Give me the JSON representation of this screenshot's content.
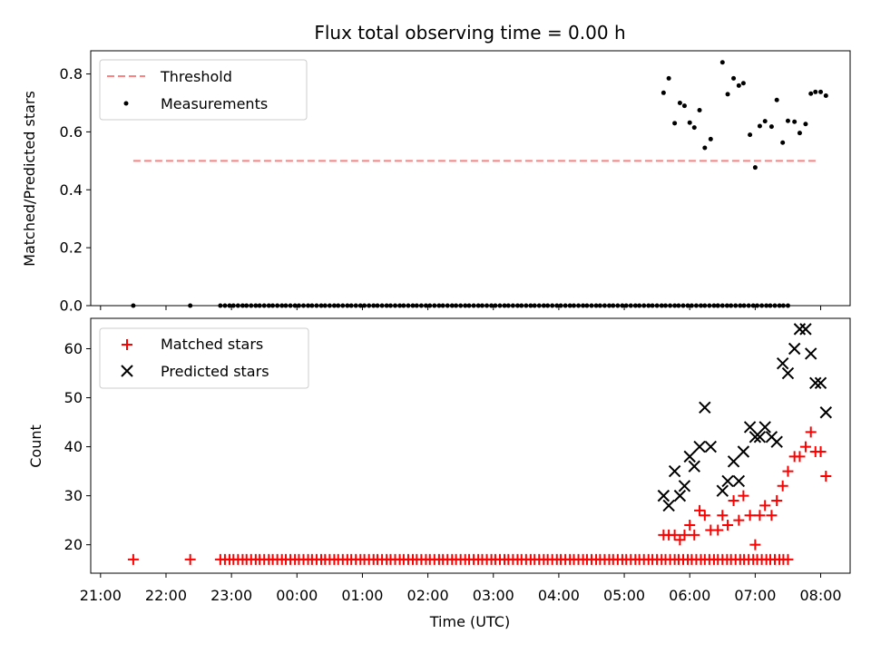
{
  "chart_data": [
    {
      "type": "scatter",
      "title": "Flux total observing time = 0.00 h",
      "xlabel": "",
      "ylabel": "Matched/Predicted stars",
      "ylim": [
        0,
        0.88
      ],
      "yticks": [
        "0.0",
        "0.2",
        "0.4",
        "0.6",
        "0.8"
      ],
      "ytick_values": [
        0,
        0.2,
        0.4,
        0.6,
        0.8
      ],
      "xlim": [
        -0.15,
        11.45
      ],
      "legend": {
        "placement": "top-left",
        "entries": [
          "Threshold",
          "Measurements"
        ]
      },
      "threshold": {
        "name": "Threshold",
        "value": 0.5,
        "x_start": 0.5,
        "x_end": 10.95,
        "color": "#ff8080"
      },
      "measurements_zero_x": [
        0.5,
        1.37,
        1.83,
        1.9,
        1.97,
        2.03,
        2.1,
        2.17,
        2.23,
        2.3,
        2.37,
        2.43,
        2.5,
        2.57,
        2.63,
        2.7,
        2.77,
        2.83,
        2.9,
        2.97,
        3.03,
        3.1,
        3.17,
        3.23,
        3.3,
        3.37,
        3.43,
        3.5,
        3.57,
        3.63,
        3.7,
        3.77,
        3.83,
        3.9,
        3.97,
        4.03,
        4.1,
        4.17,
        4.23,
        4.3,
        4.37,
        4.43,
        4.5,
        4.57,
        4.63,
        4.7,
        4.77,
        4.83,
        4.9,
        4.97,
        5.03,
        5.1,
        5.17,
        5.23,
        5.3,
        5.37,
        5.43,
        5.5,
        5.57,
        5.63,
        5.7,
        5.77,
        5.83,
        5.9,
        5.97,
        6.03,
        6.1,
        6.17,
        6.23,
        6.3,
        6.37,
        6.43,
        6.5,
        6.57,
        6.63,
        6.7,
        6.77,
        6.83,
        6.9,
        6.97,
        7.03,
        7.1,
        7.17,
        7.23,
        7.3,
        7.37,
        7.43,
        7.5,
        7.57,
        7.63,
        7.7,
        7.77,
        7.83,
        7.9,
        7.97,
        8.03,
        8.1,
        8.17,
        8.23,
        8.3,
        8.37,
        8.43,
        8.5,
        8.57,
        8.63,
        8.7,
        8.77,
        8.83,
        8.9,
        8.97,
        9.03,
        9.1,
        9.17,
        9.23,
        9.3,
        9.37,
        9.43,
        9.5,
        9.57,
        9.63,
        9.7,
        9.77,
        9.83,
        9.9,
        9.97,
        10.03,
        10.1,
        10.17,
        10.23,
        10.3,
        10.37,
        10.43,
        10.5
      ],
      "measurements": [
        {
          "x": 8.6,
          "y": 0.735
        },
        {
          "x": 8.68,
          "y": 0.785
        },
        {
          "x": 8.77,
          "y": 0.63
        },
        {
          "x": 8.85,
          "y": 0.7
        },
        {
          "x": 8.92,
          "y": 0.69
        },
        {
          "x": 9.0,
          "y": 0.632
        },
        {
          "x": 9.07,
          "y": 0.615
        },
        {
          "x": 9.15,
          "y": 0.675
        },
        {
          "x": 9.23,
          "y": 0.545
        },
        {
          "x": 9.32,
          "y": 0.575
        },
        {
          "x": 9.43,
          "y": 0.0
        },
        {
          "x": 9.5,
          "y": 0.84
        },
        {
          "x": 9.58,
          "y": 0.73
        },
        {
          "x": 9.67,
          "y": 0.785
        },
        {
          "x": 9.75,
          "y": 0.76
        },
        {
          "x": 9.82,
          "y": 0.768
        },
        {
          "x": 9.92,
          "y": 0.59
        },
        {
          "x": 10.0,
          "y": 0.477
        },
        {
          "x": 10.07,
          "y": 0.62
        },
        {
          "x": 10.15,
          "y": 0.637
        },
        {
          "x": 10.25,
          "y": 0.618
        },
        {
          "x": 10.33,
          "y": 0.71
        },
        {
          "x": 10.42,
          "y": 0.563
        },
        {
          "x": 10.5,
          "y": 0.638
        },
        {
          "x": 10.6,
          "y": 0.635
        },
        {
          "x": 10.68,
          "y": 0.596
        },
        {
          "x": 10.77,
          "y": 0.627
        },
        {
          "x": 10.85,
          "y": 0.732
        },
        {
          "x": 10.92,
          "y": 0.738
        },
        {
          "x": 11.0,
          "y": 0.738
        },
        {
          "x": 11.08,
          "y": 0.725
        }
      ]
    },
    {
      "type": "scatter",
      "xlabel": "Time (UTC)",
      "ylabel": "Count",
      "ylim": [
        14.2,
        66.2
      ],
      "yticks": [
        "20",
        "30",
        "40",
        "50",
        "60"
      ],
      "ytick_values": [
        20,
        30,
        40,
        50,
        60
      ],
      "xlim": [
        -0.15,
        11.45
      ],
      "xticks": [
        "21:00",
        "22:00",
        "23:00",
        "00:00",
        "01:00",
        "02:00",
        "03:00",
        "04:00",
        "05:00",
        "06:00",
        "07:00",
        "08:00"
      ],
      "xtick_values": [
        0,
        1,
        2,
        3,
        4,
        5,
        6,
        7,
        8,
        9,
        10,
        11
      ],
      "legend": {
        "placement": "top-left",
        "entries": [
          "Matched stars",
          "Predicted stars"
        ]
      },
      "matched_baseline": 17,
      "matched": [
        {
          "x": 8.6,
          "y": 22
        },
        {
          "x": 8.68,
          "y": 22
        },
        {
          "x": 8.77,
          "y": 22
        },
        {
          "x": 8.85,
          "y": 21
        },
        {
          "x": 8.92,
          "y": 22
        },
        {
          "x": 9.0,
          "y": 24
        },
        {
          "x": 9.07,
          "y": 22
        },
        {
          "x": 9.15,
          "y": 27
        },
        {
          "x": 9.23,
          "y": 26
        },
        {
          "x": 9.32,
          "y": 23
        },
        {
          "x": 9.43,
          "y": 23
        },
        {
          "x": 9.5,
          "y": 26
        },
        {
          "x": 9.58,
          "y": 24
        },
        {
          "x": 9.67,
          "y": 29
        },
        {
          "x": 9.75,
          "y": 25
        },
        {
          "x": 9.82,
          "y": 30
        },
        {
          "x": 9.92,
          "y": 26
        },
        {
          "x": 10.0,
          "y": 20
        },
        {
          "x": 10.07,
          "y": 26
        },
        {
          "x": 10.15,
          "y": 28
        },
        {
          "x": 10.25,
          "y": 26
        },
        {
          "x": 10.33,
          "y": 29
        },
        {
          "x": 10.42,
          "y": 32
        },
        {
          "x": 10.5,
          "y": 35
        },
        {
          "x": 10.6,
          "y": 38
        },
        {
          "x": 10.68,
          "y": 38
        },
        {
          "x": 10.77,
          "y": 40
        },
        {
          "x": 10.85,
          "y": 43
        },
        {
          "x": 10.92,
          "y": 39
        },
        {
          "x": 11.0,
          "y": 39
        },
        {
          "x": 11.08,
          "y": 34
        }
      ],
      "predicted": [
        {
          "x": 8.6,
          "y": 30
        },
        {
          "x": 8.68,
          "y": 28
        },
        {
          "x": 8.77,
          "y": 35
        },
        {
          "x": 8.85,
          "y": 30
        },
        {
          "x": 8.92,
          "y": 32
        },
        {
          "x": 9.0,
          "y": 38
        },
        {
          "x": 9.07,
          "y": 36
        },
        {
          "x": 9.15,
          "y": 40
        },
        {
          "x": 9.23,
          "y": 48
        },
        {
          "x": 9.32,
          "y": 40
        },
        {
          "x": 9.5,
          "y": 31
        },
        {
          "x": 9.58,
          "y": 33
        },
        {
          "x": 9.67,
          "y": 37
        },
        {
          "x": 9.75,
          "y": 33
        },
        {
          "x": 9.82,
          "y": 39
        },
        {
          "x": 9.92,
          "y": 44
        },
        {
          "x": 10.0,
          "y": 42
        },
        {
          "x": 10.07,
          "y": 42
        },
        {
          "x": 10.15,
          "y": 44
        },
        {
          "x": 10.25,
          "y": 42
        },
        {
          "x": 10.33,
          "y": 41
        },
        {
          "x": 10.42,
          "y": 57
        },
        {
          "x": 10.5,
          "y": 55
        },
        {
          "x": 10.6,
          "y": 60
        },
        {
          "x": 10.68,
          "y": 64
        },
        {
          "x": 10.77,
          "y": 64
        },
        {
          "x": 10.85,
          "y": 59
        },
        {
          "x": 10.92,
          "y": 53
        },
        {
          "x": 11.0,
          "y": 53
        },
        {
          "x": 11.08,
          "y": 47
        }
      ],
      "colors": {
        "matched": "#ff0000",
        "predicted": "#000000"
      }
    }
  ]
}
